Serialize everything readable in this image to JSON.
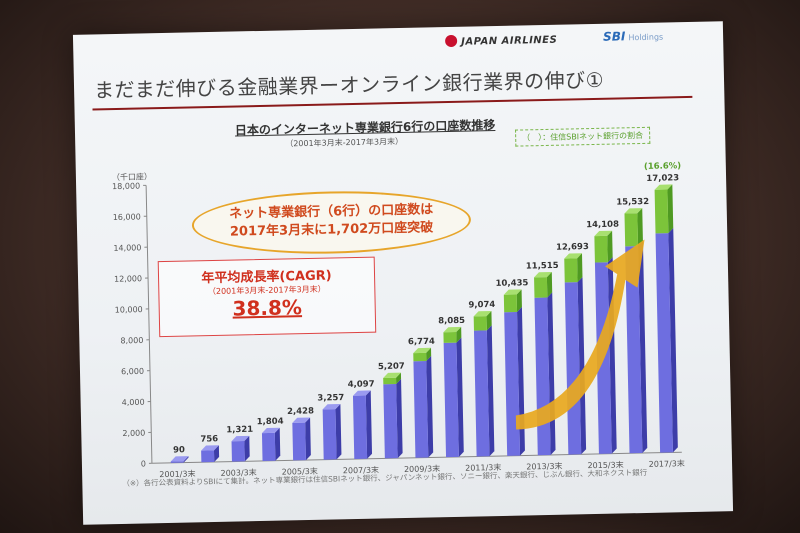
{
  "logos": {
    "jal": "JAPAN AIRLINES",
    "sbi": "SBI",
    "sbi_sub": "Holdings"
  },
  "slide_title": "まだまだ伸びる金融業界ーオンライン銀行業界の伸び①",
  "chart_title": "日本のインターネット専業銀行6行の口座数推移",
  "chart_subtitle": "（2001年3月末-2017年3月末）",
  "legend_note": "（　）：住信SBIネット銀行の割合",
  "unit": "（千口座）",
  "callout": {
    "line1": "ネット専業銀行（6行）の口座数は",
    "line2": "2017年3月末に1,702万口座突破"
  },
  "cagr": {
    "heading": "年平均成長率(CAGR)",
    "period": "（2001年3月末-2017年3月末）",
    "value": "38.8%"
  },
  "last_share_label": "(16.6%)",
  "footnote": "（※）各行公表資料よりSBIにて集計。ネット専業銀行は住信SBIネット銀行、ジャパンネット銀行、ソニー銀行、楽天銀行、じぶん銀行、大和ネクスト銀行",
  "colors": {
    "other_banks": "#6e6ee0",
    "sbi_share": "#7cc43a",
    "arrow": "#e8a81e"
  },
  "chart_data": {
    "type": "bar",
    "stacked": true,
    "categories": [
      "2001",
      "2002",
      "2003",
      "2004",
      "2005",
      "2006",
      "2007",
      "2008",
      "2009",
      "2010",
      "2011",
      "2012",
      "2013",
      "2014",
      "2015",
      "2016",
      "2017"
    ],
    "x_tick_labels": [
      "2001/3末",
      "",
      "2003/3末",
      "",
      "2005/3末",
      "",
      "2007/3末",
      "",
      "2009/3末",
      "",
      "2011/3末",
      "",
      "2013/3末",
      "",
      "2015/3末",
      "",
      "2017/3末"
    ],
    "totals": [
      90,
      756,
      1321,
      1804,
      2428,
      3257,
      4097,
      5207,
      6774,
      8085,
      9074,
      10435,
      11515,
      12693,
      14108,
      15532,
      17023
    ],
    "total_labels": [
      "90",
      "756",
      "1,321",
      "1,804",
      "2,428",
      "3,257",
      "4,097",
      "5,207",
      "6,774",
      "8,085",
      "9,074",
      "10,435",
      "11,515",
      "12,693",
      "14,108",
      "15,532",
      "17,023"
    ],
    "series": [
      {
        "values": [
          90,
          756,
          1321,
          1804,
          2428,
          3257,
          4097,
          4800,
          6250,
          7400,
          8150,
          9300,
          10200,
          11150,
          12400,
          13400,
          14200
        ]
      },
      {
        "values": [
          0,
          0,
          0,
          0,
          0,
          0,
          0,
          407,
          524,
          685,
          924,
          1135,
          1315,
          1543,
          1708,
          2132,
          2823
        ]
      }
    ],
    "ylim": [
      0,
      18000
    ],
    "yticks": [
      0,
      2000,
      4000,
      6000,
      8000,
      10000,
      12000,
      14000,
      16000,
      18000
    ],
    "ytick_labels": [
      "0",
      "2,000",
      "4,000",
      "6,000",
      "8,000",
      "10,000",
      "12,000",
      "14,000",
      "16,000",
      "18,000"
    ],
    "grid": false
  }
}
